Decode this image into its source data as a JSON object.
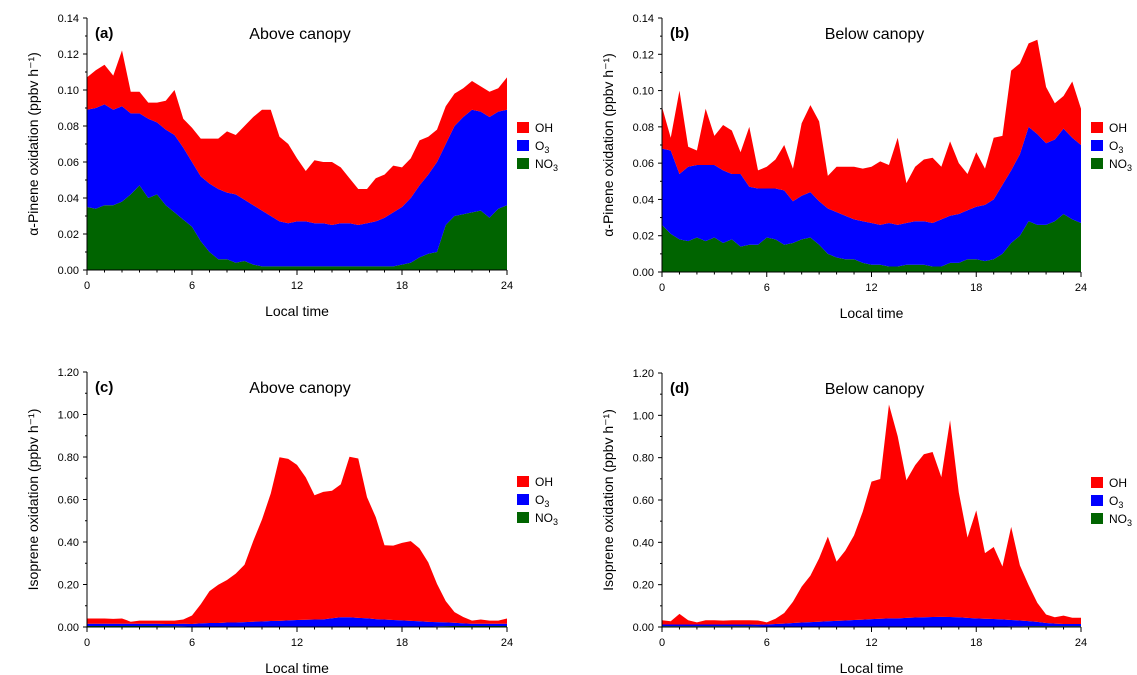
{
  "chart_data": [
    {
      "type": "area",
      "stacked": true,
      "panel_label": "(a)",
      "title": "Above canopy",
      "xlabel": "Local time",
      "ylabel": "α-Pinene oxidation (ppbv h⁻¹)",
      "xlim": [
        0,
        24
      ],
      "ylim": [
        0,
        0.14
      ],
      "xticks": [
        0,
        6,
        12,
        18,
        24
      ],
      "yticks": [
        "0.00",
        "0.02",
        "0.04",
        "0.06",
        "0.08",
        "0.10",
        "0.12",
        "0.14"
      ],
      "x": [
        0,
        0.5,
        1,
        1.5,
        2,
        2.5,
        3,
        3.5,
        4,
        4.5,
        5,
        5.5,
        6,
        6.5,
        7,
        7.5,
        8,
        8.5,
        9,
        9.5,
        10,
        10.5,
        11,
        11.5,
        12,
        12.5,
        13,
        13.5,
        14,
        14.5,
        15,
        15.5,
        16,
        16.5,
        17,
        17.5,
        18,
        18.5,
        19,
        19.5,
        20,
        20.5,
        21,
        21.5,
        22,
        22.5,
        23,
        23.5,
        24
      ],
      "series": [
        {
          "name": "NO3",
          "color": "#006400",
          "values": [
            0.035,
            0.034,
            0.036,
            0.036,
            0.038,
            0.042,
            0.047,
            0.04,
            0.042,
            0.036,
            0.032,
            0.028,
            0.024,
            0.016,
            0.01,
            0.006,
            0.006,
            0.004,
            0.005,
            0.003,
            0.002,
            0.002,
            0.002,
            0.002,
            0.002,
            0.002,
            0.002,
            0.002,
            0.002,
            0.002,
            0.002,
            0.002,
            0.002,
            0.002,
            0.002,
            0.002,
            0.003,
            0.004,
            0.007,
            0.009,
            0.01,
            0.025,
            0.03,
            0.031,
            0.032,
            0.033,
            0.029,
            0.034,
            0.036
          ]
        },
        {
          "name": "O3",
          "color": "#0000ff",
          "values": [
            0.054,
            0.056,
            0.056,
            0.053,
            0.053,
            0.045,
            0.04,
            0.044,
            0.04,
            0.042,
            0.043,
            0.04,
            0.036,
            0.036,
            0.038,
            0.039,
            0.037,
            0.038,
            0.034,
            0.033,
            0.031,
            0.028,
            0.025,
            0.024,
            0.025,
            0.025,
            0.024,
            0.024,
            0.023,
            0.024,
            0.024,
            0.023,
            0.024,
            0.025,
            0.027,
            0.03,
            0.032,
            0.036,
            0.04,
            0.044,
            0.05,
            0.045,
            0.05,
            0.054,
            0.057,
            0.055,
            0.056,
            0.054,
            0.053
          ]
        },
        {
          "name": "OH",
          "color": "#ff0000",
          "values": [
            0.018,
            0.021,
            0.022,
            0.019,
            0.031,
            0.012,
            0.012,
            0.009,
            0.011,
            0.016,
            0.025,
            0.016,
            0.019,
            0.021,
            0.025,
            0.028,
            0.034,
            0.033,
            0.041,
            0.049,
            0.056,
            0.059,
            0.047,
            0.044,
            0.035,
            0.028,
            0.035,
            0.034,
            0.035,
            0.031,
            0.025,
            0.02,
            0.019,
            0.024,
            0.024,
            0.026,
            0.022,
            0.022,
            0.025,
            0.021,
            0.018,
            0.021,
            0.018,
            0.016,
            0.016,
            0.014,
            0.014,
            0.013,
            0.018
          ]
        }
      ],
      "legend_position": "right"
    },
    {
      "type": "area",
      "stacked": true,
      "panel_label": "(b)",
      "title": "Below canopy",
      "xlabel": "Local time",
      "ylabel": "α-Pinene oxidation (ppbv h⁻¹)",
      "xlim": [
        0,
        24
      ],
      "ylim": [
        0,
        0.14
      ],
      "xticks": [
        0,
        6,
        12,
        18,
        24
      ],
      "yticks": [
        "0.00",
        "0.02",
        "0.04",
        "0.06",
        "0.08",
        "0.10",
        "0.12",
        "0.14"
      ],
      "x": [
        0,
        0.5,
        1,
        1.5,
        2,
        2.5,
        3,
        3.5,
        4,
        4.5,
        5,
        5.5,
        6,
        6.5,
        7,
        7.5,
        8,
        8.5,
        9,
        9.5,
        10,
        10.5,
        11,
        11.5,
        12,
        12.5,
        13,
        13.5,
        14,
        14.5,
        15,
        15.5,
        16,
        16.5,
        17,
        17.5,
        18,
        18.5,
        19,
        19.5,
        20,
        20.5,
        21,
        21.5,
        22,
        22.5,
        23,
        23.5,
        24
      ],
      "series": [
        {
          "name": "NO3",
          "color": "#006400",
          "values": [
            0.026,
            0.021,
            0.018,
            0.017,
            0.019,
            0.017,
            0.019,
            0.016,
            0.018,
            0.014,
            0.015,
            0.015,
            0.019,
            0.018,
            0.015,
            0.016,
            0.018,
            0.019,
            0.015,
            0.01,
            0.008,
            0.007,
            0.007,
            0.005,
            0.004,
            0.004,
            0.003,
            0.003,
            0.004,
            0.004,
            0.004,
            0.003,
            0.003,
            0.005,
            0.005,
            0.007,
            0.007,
            0.006,
            0.007,
            0.01,
            0.016,
            0.02,
            0.028,
            0.026,
            0.026,
            0.028,
            0.032,
            0.029,
            0.027
          ]
        },
        {
          "name": "O3",
          "color": "#0000ff",
          "values": [
            0.042,
            0.046,
            0.036,
            0.041,
            0.04,
            0.042,
            0.04,
            0.04,
            0.036,
            0.04,
            0.032,
            0.031,
            0.027,
            0.028,
            0.03,
            0.023,
            0.024,
            0.025,
            0.024,
            0.025,
            0.025,
            0.024,
            0.022,
            0.023,
            0.023,
            0.022,
            0.024,
            0.023,
            0.023,
            0.024,
            0.024,
            0.024,
            0.026,
            0.026,
            0.027,
            0.027,
            0.029,
            0.031,
            0.033,
            0.038,
            0.04,
            0.045,
            0.052,
            0.05,
            0.045,
            0.045,
            0.047,
            0.045,
            0.043
          ]
        },
        {
          "name": "OH",
          "color": "#ff0000",
          "values": [
            0.023,
            0.007,
            0.046,
            0.011,
            0.008,
            0.031,
            0.016,
            0.025,
            0.024,
            0.012,
            0.033,
            0.01,
            0.012,
            0.016,
            0.025,
            0.018,
            0.04,
            0.048,
            0.044,
            0.018,
            0.025,
            0.027,
            0.029,
            0.029,
            0.031,
            0.035,
            0.032,
            0.048,
            0.022,
            0.03,
            0.034,
            0.036,
            0.029,
            0.041,
            0.028,
            0.02,
            0.03,
            0.02,
            0.034,
            0.027,
            0.055,
            0.05,
            0.046,
            0.052,
            0.031,
            0.02,
            0.018,
            0.031,
            0.02
          ]
        }
      ],
      "legend_position": "right"
    },
    {
      "type": "area",
      "stacked": true,
      "panel_label": "(c)",
      "title": "Above canopy",
      "xlabel": "Local time",
      "ylabel": "Isoprene oxidation (ppbv h⁻¹)",
      "xlim": [
        0,
        24
      ],
      "ylim": [
        0,
        1.2
      ],
      "xticks": [
        0,
        6,
        12,
        18,
        24
      ],
      "yticks": [
        "0.00",
        "0.20",
        "0.40",
        "0.60",
        "0.80",
        "1.00",
        "1.20"
      ],
      "x": [
        0,
        0.5,
        1,
        1.5,
        2,
        2.5,
        3,
        3.5,
        4,
        4.5,
        5,
        5.5,
        6,
        6.5,
        7,
        7.5,
        8,
        8.5,
        9,
        9.5,
        10,
        10.5,
        11,
        11.5,
        12,
        12.5,
        13,
        13.5,
        14,
        14.5,
        15,
        15.5,
        16,
        16.5,
        17,
        17.5,
        18,
        18.5,
        19,
        19.5,
        20,
        20.5,
        21,
        21.5,
        22,
        22.5,
        23,
        23.5,
        24
      ],
      "series": [
        {
          "name": "NO3",
          "color": "#006400",
          "values": [
            0.005,
            0.005,
            0.005,
            0.005,
            0.005,
            0.005,
            0.005,
            0.005,
            0.005,
            0.004,
            0.004,
            0.003,
            0.002,
            0.002,
            0.001,
            0.001,
            0.001,
            0.001,
            0.001,
            0.001,
            0.001,
            0.001,
            0.001,
            0.001,
            0.001,
            0.001,
            0.001,
            0.001,
            0.001,
            0.001,
            0.001,
            0.001,
            0.001,
            0.001,
            0.001,
            0.001,
            0.001,
            0.001,
            0.002,
            0.002,
            0.003,
            0.004,
            0.005,
            0.005,
            0.005,
            0.005,
            0.005,
            0.005,
            0.005
          ]
        },
        {
          "name": "O3",
          "color": "#0000ff",
          "values": [
            0.01,
            0.01,
            0.01,
            0.01,
            0.01,
            0.01,
            0.01,
            0.01,
            0.01,
            0.01,
            0.01,
            0.012,
            0.012,
            0.015,
            0.018,
            0.018,
            0.02,
            0.02,
            0.022,
            0.024,
            0.025,
            0.027,
            0.028,
            0.03,
            0.032,
            0.033,
            0.034,
            0.035,
            0.04,
            0.045,
            0.045,
            0.042,
            0.04,
            0.036,
            0.034,
            0.032,
            0.03,
            0.028,
            0.025,
            0.022,
            0.02,
            0.018,
            0.015,
            0.012,
            0.01,
            0.01,
            0.01,
            0.01,
            0.01
          ]
        },
        {
          "name": "OH",
          "color": "#ff0000",
          "values": [
            0.025,
            0.025,
            0.025,
            0.023,
            0.025,
            0.01,
            0.015,
            0.015,
            0.015,
            0.016,
            0.016,
            0.02,
            0.04,
            0.09,
            0.15,
            0.18,
            0.2,
            0.23,
            0.27,
            0.38,
            0.48,
            0.6,
            0.77,
            0.76,
            0.73,
            0.67,
            0.585,
            0.6,
            0.6,
            0.625,
            0.755,
            0.75,
            0.57,
            0.48,
            0.35,
            0.35,
            0.365,
            0.375,
            0.343,
            0.28,
            0.18,
            0.1,
            0.05,
            0.03,
            0.015,
            0.02,
            0.015,
            0.015,
            0.025
          ]
        }
      ],
      "legend_position": "right"
    },
    {
      "type": "area",
      "stacked": true,
      "panel_label": "(d)",
      "title": "Below canopy",
      "xlabel": "Local time",
      "ylabel": "Isoprene oxidation (ppbv h⁻¹)",
      "xlim": [
        0,
        24
      ],
      "ylim": [
        0,
        1.2
      ],
      "xticks": [
        0,
        6,
        12,
        18,
        24
      ],
      "yticks": [
        "0.00",
        "0.20",
        "0.40",
        "0.60",
        "0.80",
        "1.00",
        "1.20"
      ],
      "x": [
        0,
        0.5,
        1,
        1.5,
        2,
        2.5,
        3,
        3.5,
        4,
        4.5,
        5,
        5.5,
        6,
        6.5,
        7,
        7.5,
        8,
        8.5,
        9,
        9.5,
        10,
        10.5,
        11,
        11.5,
        12,
        12.5,
        13,
        13.5,
        14,
        14.5,
        15,
        15.5,
        16,
        16.5,
        17,
        17.5,
        18,
        18.5,
        19,
        19.5,
        20,
        20.5,
        21,
        21.5,
        22,
        22.5,
        23,
        23.5,
        24
      ],
      "series": [
        {
          "name": "NO3",
          "color": "#006400",
          "values": [
            0.004,
            0.004,
            0.004,
            0.004,
            0.004,
            0.004,
            0.004,
            0.004,
            0.004,
            0.004,
            0.004,
            0.003,
            0.002,
            0.002,
            0.001,
            0.001,
            0.001,
            0.001,
            0.001,
            0.001,
            0.001,
            0.001,
            0.001,
            0.001,
            0.001,
            0.001,
            0.001,
            0.001,
            0.001,
            0.001,
            0.001,
            0.001,
            0.001,
            0.001,
            0.001,
            0.001,
            0.001,
            0.001,
            0.002,
            0.002,
            0.003,
            0.003,
            0.004,
            0.004,
            0.004,
            0.004,
            0.004,
            0.004,
            0.004
          ]
        },
        {
          "name": "O3",
          "color": "#0000ff",
          "values": [
            0.008,
            0.008,
            0.008,
            0.008,
            0.008,
            0.008,
            0.008,
            0.008,
            0.008,
            0.008,
            0.008,
            0.008,
            0.01,
            0.012,
            0.015,
            0.018,
            0.02,
            0.022,
            0.024,
            0.026,
            0.028,
            0.03,
            0.032,
            0.034,
            0.036,
            0.038,
            0.04,
            0.04,
            0.042,
            0.044,
            0.045,
            0.046,
            0.047,
            0.046,
            0.045,
            0.042,
            0.04,
            0.038,
            0.036,
            0.034,
            0.03,
            0.028,
            0.024,
            0.02,
            0.015,
            0.012,
            0.01,
            0.01,
            0.01
          ]
        },
        {
          "name": "OH",
          "color": "#ff0000",
          "values": [
            0.02,
            0.015,
            0.05,
            0.02,
            0.01,
            0.02,
            0.02,
            0.018,
            0.02,
            0.02,
            0.02,
            0.02,
            0.01,
            0.025,
            0.05,
            0.1,
            0.17,
            0.22,
            0.3,
            0.4,
            0.28,
            0.33,
            0.4,
            0.51,
            0.65,
            0.66,
            1.01,
            0.86,
            0.65,
            0.72,
            0.77,
            0.78,
            0.66,
            0.93,
            0.59,
            0.38,
            0.51,
            0.31,
            0.34,
            0.25,
            0.44,
            0.26,
            0.17,
            0.09,
            0.04,
            0.03,
            0.04,
            0.03,
            0.03
          ]
        }
      ],
      "legend_position": "right"
    }
  ]
}
